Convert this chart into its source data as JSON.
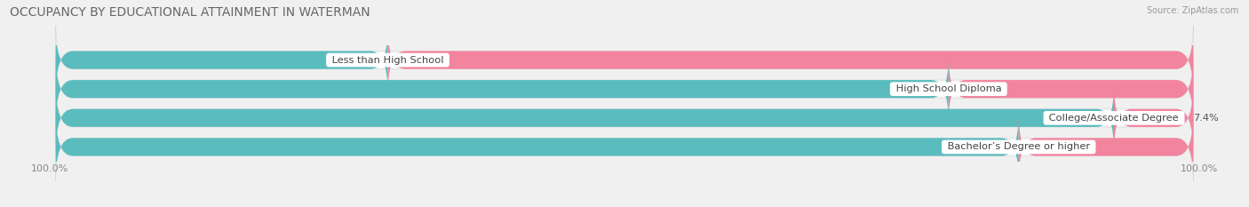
{
  "title": "OCCUPANCY BY EDUCATIONAL ATTAINMENT IN WATERMAN",
  "source": "Source: ZipAtlas.com",
  "categories": [
    "Less than High School",
    "High School Diploma",
    "College/Associate Degree",
    "Bachelor’s Degree or higher"
  ],
  "owner_pct": [
    29.4,
    78.2,
    92.6,
    84.3
  ],
  "renter_pct": [
    70.6,
    21.8,
    7.4,
    15.7
  ],
  "owner_color": "#5bbcbe",
  "renter_color": "#f2849e",
  "bg_color": "#f0f0f0",
  "bar_bg_color": "#e0e0e0",
  "row_bg_even": "#ffffff",
  "row_bg_odd": "#f5f5f5",
  "bar_height": 0.62,
  "title_fontsize": 10,
  "label_fontsize": 8.2,
  "pct_fontsize": 8.2,
  "legend_fontsize": 8.5,
  "axis_label_fontsize": 8
}
